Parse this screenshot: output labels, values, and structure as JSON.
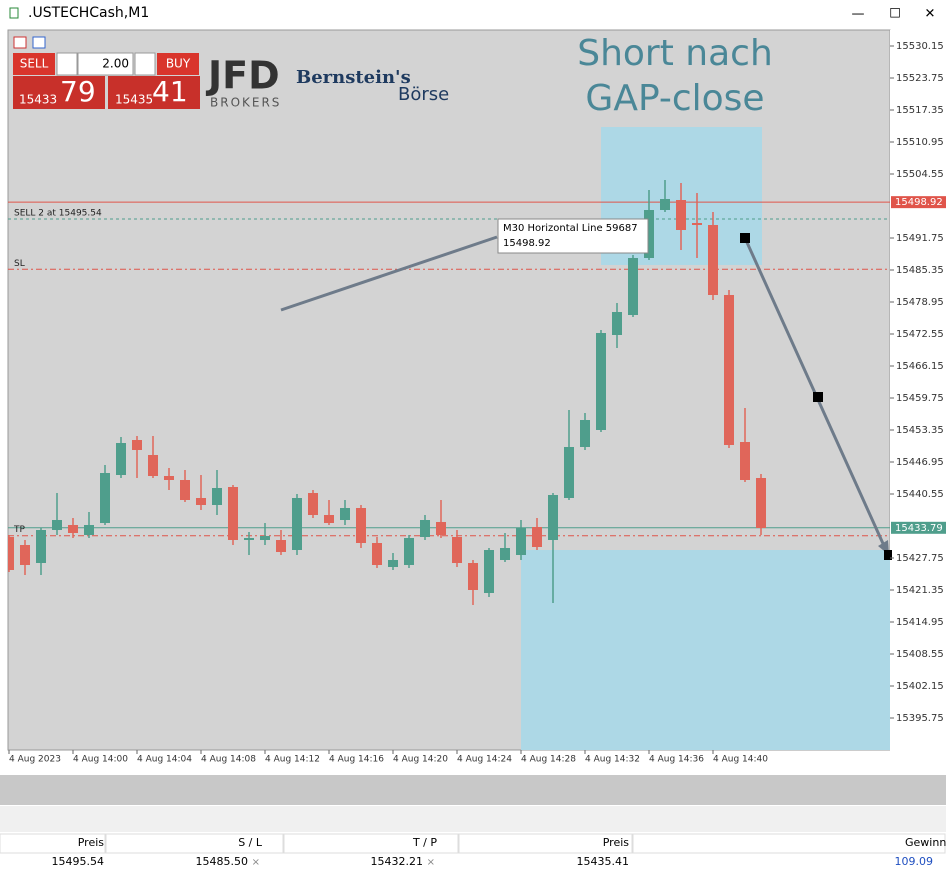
{
  "window": {
    "title": ".USTECHCash,M1",
    "controls": [
      "—",
      "☐",
      "✕"
    ]
  },
  "trade_panel": {
    "sell": "SELL",
    "buy": "BUY",
    "volume": "2.00",
    "bid_big": "15433",
    "bid_small": "79",
    "ask_big": "15435",
    "ask_small": "41"
  },
  "logos": {
    "jfd": "JFD",
    "jfd_sub": "BROKERS",
    "bernstein": "Bernstein's",
    "boerse": "Börse"
  },
  "chart_data": {
    "type": "candlestick",
    "annotation": [
      "Short nach",
      "GAP-close"
    ],
    "categories": [
      "4 Aug 2023",
      null,
      null,
      null,
      "4 Aug 14:00",
      null,
      null,
      null,
      "4 Aug 14:04",
      null,
      null,
      null,
      "4 Aug 14:08",
      null,
      null,
      null,
      "4 Aug 14:12",
      null,
      null,
      null,
      "4 Aug 14:16",
      null,
      null,
      null,
      "4 Aug 14:20",
      null,
      null,
      null,
      "4 Aug 14:24",
      null,
      null,
      null,
      "4 Aug 14:28",
      null,
      null,
      null,
      "4 Aug 14:32",
      null,
      null,
      null,
      "4 Aug 14:36",
      null,
      null,
      null,
      "4 Aug 14:40",
      null,
      null,
      null
    ],
    "open": [
      15431.95,
      15430.35,
      15426.75,
      15433.35,
      15434.35,
      15432.35,
      15434.75,
      15444.35,
      15451.35,
      15448.35,
      15444.15,
      15443.35,
      15439.75,
      15438.35,
      15441.95,
      15431.35,
      15431.35,
      15431.35,
      15429.35,
      15440.75,
      15436.35,
      15435.35,
      15437.75,
      15430.75,
      15425.95,
      15426.35,
      15431.95,
      15434.95,
      15431.95,
      15426.75,
      15420.75,
      15427.35,
      15428.35,
      15433.95,
      15431.35,
      15439.75,
      15449.95,
      15453.35,
      15472.35,
      15476.35,
      15487.75,
      15497.35,
      15499.35,
      15494.75,
      15494.35,
      15480.35,
      15450.95,
      15443.75
    ],
    "high": [
      15432.35,
      15431.35,
      15433.75,
      15440.75,
      15435.75,
      15436.95,
      15446.35,
      15451.95,
      15452.15,
      15452.15,
      15445.75,
      15445.35,
      15444.35,
      15445.35,
      15442.35,
      15432.95,
      15434.75,
      15433.35,
      15440.55,
      15441.35,
      15439.35,
      15439.35,
      15438.35,
      15431.95,
      15428.75,
      15432.35,
      15436.35,
      15439.35,
      15433.35,
      15427.35,
      15429.75,
      15432.75,
      15435.35,
      15435.75,
      15440.75,
      15457.35,
      15456.75,
      15473.35,
      15478.75,
      15488.35,
      15501.35,
      15503.35,
      15502.75,
      15500.75,
      15496.95,
      15481.35,
      15457.75,
      15444.55
    ],
    "low": [
      15424.95,
      15424.35,
      15424.35,
      15432.35,
      15431.75,
      15431.75,
      15434.35,
      15443.75,
      15443.75,
      15443.75,
      15441.35,
      15438.95,
      15437.35,
      15436.35,
      15430.35,
      15428.35,
      15430.35,
      15428.35,
      15428.35,
      15435.75,
      15434.35,
      15434.35,
      15429.75,
      15425.75,
      15425.35,
      15425.75,
      15431.35,
      15431.75,
      15425.95,
      15418.35,
      15419.95,
      15426.95,
      15427.35,
      15429.35,
      15418.75,
      15439.35,
      15449.35,
      15452.95,
      15469.75,
      15475.95,
      15487.35,
      15496.95,
      15489.35,
      15487.75,
      15479.35,
      15449.75,
      15442.95,
      15432.35
    ],
    "close": [
      15425.35,
      15426.35,
      15433.35,
      15435.35,
      15432.75,
      15434.35,
      15444.75,
      15450.75,
      15449.35,
      15444.15,
      15443.35,
      15439.35,
      15438.35,
      15441.75,
      15431.35,
      15431.75,
      15432.15,
      15428.95,
      15439.75,
      15436.35,
      15434.75,
      15437.75,
      15430.75,
      15426.35,
      15427.35,
      15431.75,
      15435.35,
      15432.35,
      15426.75,
      15421.35,
      15429.35,
      15429.75,
      15433.75,
      15429.95,
      15440.35,
      15449.95,
      15455.35,
      15472.75,
      15476.95,
      15487.75,
      15497.35,
      15499.55,
      15493.35,
      15494.35,
      15480.35,
      15450.35,
      15443.35,
      15433.75
    ],
    "up_color": "#4f9e8c",
    "down_color": "#e0665a",
    "ylim": [
      15389.35,
      15533.35
    ],
    "yticks": [
      15530.15,
      15523.75,
      15517.35,
      15510.95,
      15504.55,
      15491.75,
      15485.35,
      15478.95,
      15472.55,
      15466.15,
      15459.75,
      15453.35,
      15446.95,
      15440.55,
      15427.75,
      15421.35,
      15414.95,
      15408.55,
      15402.15,
      15395.75
    ],
    "lines": [
      {
        "value": 15498.92,
        "color": "#e0544a",
        "style": "solid"
      },
      {
        "label": "SELL 2 at 15495.54",
        "value": 15495.54,
        "color": "#4f9e8c",
        "style": "dashed"
      },
      {
        "label": "SL",
        "value": 15485.5,
        "color": "#e0544a",
        "style": "dashdot"
      },
      {
        "value": 15433.79,
        "color": "#4f9e8c",
        "style": "solid"
      },
      {
        "label": "TP",
        "value": 15432.21,
        "color": "#e0544a",
        "style": "dashdot"
      }
    ],
    "tooltip": {
      "name": "M30 Horizontal Line 59687"
    }
  },
  "table": {
    "header": [
      "Preis",
      "S / L",
      "T / P",
      "Preis",
      "Gewinn"
    ],
    "rows": [
      [
        "15495.54",
        "15485.50",
        "15432.21",
        "15435.41",
        "109.09"
      ]
    ]
  }
}
